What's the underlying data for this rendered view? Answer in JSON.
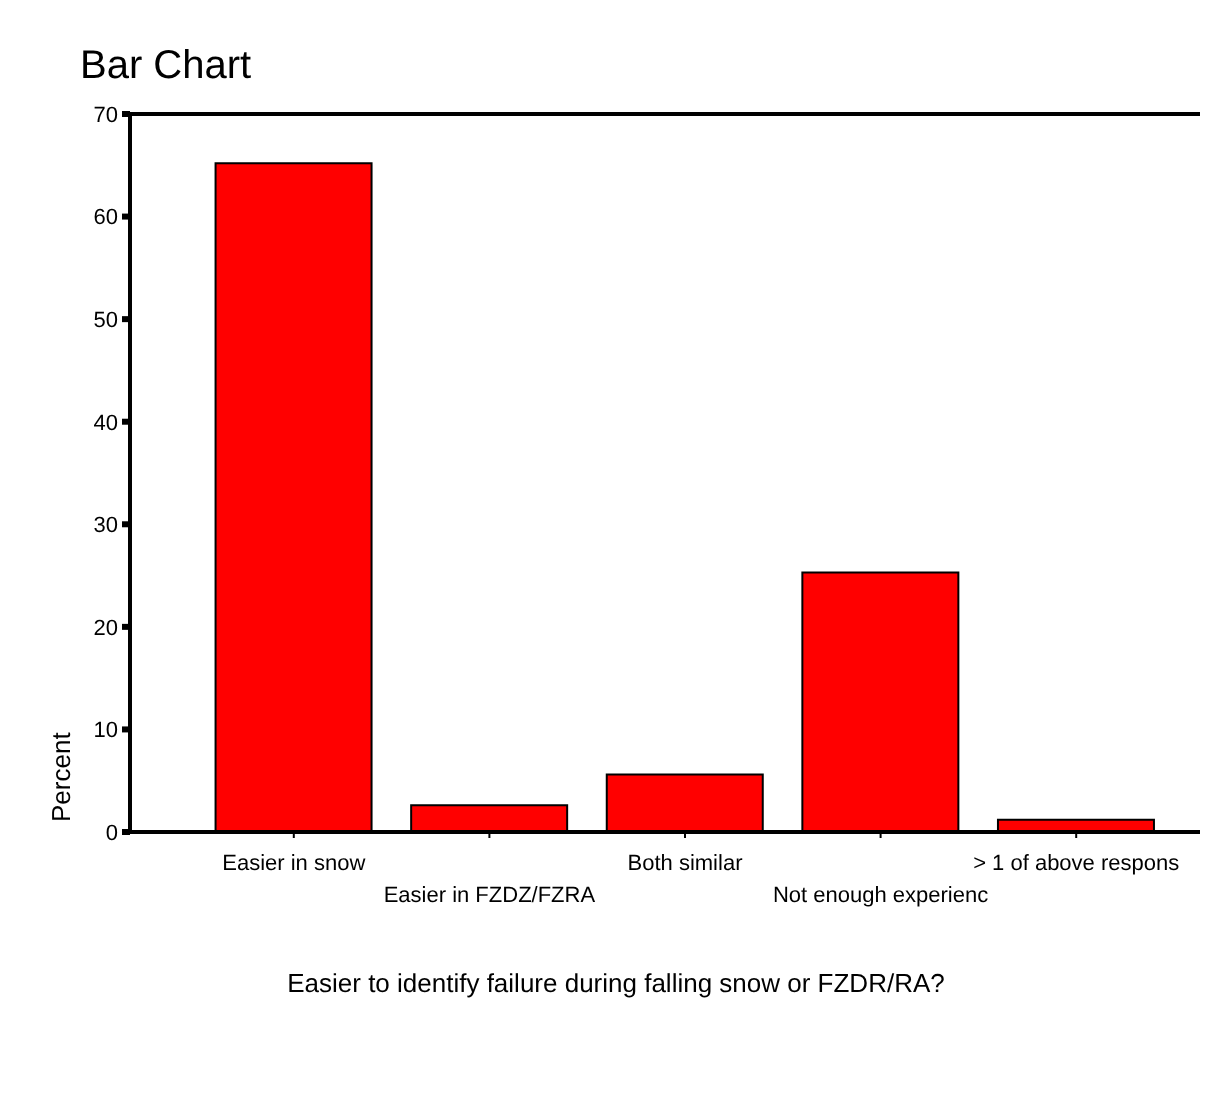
{
  "chart_data": {
    "type": "bar",
    "title": "Bar Chart",
    "xlabel": "Easier to identify failure during falling snow or FZDR/RA?",
    "ylabel": "Percent",
    "categories": [
      "Easier in snow",
      "Easier in FZDZ/FZRA",
      "Both similar",
      "Not enough experienc",
      "> 1 of above respons"
    ],
    "values": [
      65.2,
      2.6,
      5.6,
      25.3,
      1.2
    ],
    "color": "#ff0000",
    "ylim": [
      0,
      70
    ],
    "yticks": [
      0,
      10,
      20,
      30,
      40,
      50,
      60,
      70
    ],
    "grid": false,
    "legend": false
  }
}
